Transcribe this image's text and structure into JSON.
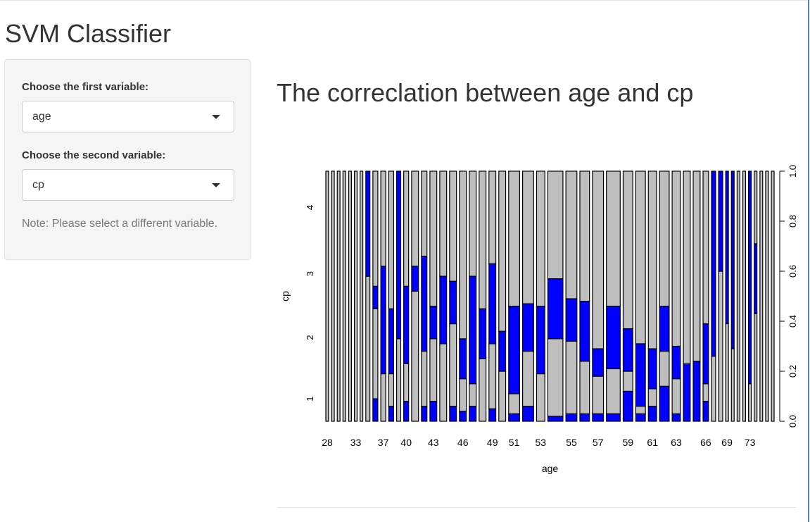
{
  "app": {
    "title": "SVM Classifier"
  },
  "sidebar": {
    "first_label": "Choose the first variable:",
    "first_value": "age",
    "second_label": "Choose the second variable:",
    "second_value": "cp",
    "note": "Note: Please select a different variable."
  },
  "main": {
    "plot_heading": "The correclation between age and cp"
  },
  "colors": {
    "cp0": "#bebebe",
    "cp1": "#0000ff",
    "outline": "#000000",
    "accent_border": "#4f87c4"
  },
  "chart_data": {
    "type": "spineplot",
    "xlabel": "age",
    "ylabel": "cp",
    "x_tick_labels": [
      "28",
      "33",
      "37",
      "40",
      "43",
      "46",
      "49",
      "51",
      "53",
      "55",
      "57",
      "59",
      "61",
      "63",
      "66",
      "69",
      "73"
    ],
    "y_left_tick_labels": [
      "1",
      "2",
      "3",
      "4"
    ],
    "y_right_tick_labels": [
      "0.0",
      "0.2",
      "0.4",
      "0.6",
      "0.8",
      "1.0"
    ],
    "ylim": [
      0,
      1
    ],
    "category_colors": [
      "#bebebe",
      "#0000ff"
    ],
    "bars": [
      {
        "age": "28",
        "w": 1,
        "b": []
      },
      {
        "age": "29",
        "w": 1,
        "b": []
      },
      {
        "age": "30",
        "w": 1,
        "b": []
      },
      {
        "age": "31",
        "w": 1,
        "b": []
      },
      {
        "age": "32",
        "w": 1,
        "b": []
      },
      {
        "age": "33",
        "w": 1,
        "b": []
      },
      {
        "age": "34",
        "w": 1,
        "b": []
      },
      {
        "age": "35",
        "w": 1.5,
        "b": [
          0.58
        ]
      },
      {
        "age": "36",
        "w": 1.8,
        "b": [
          0.0,
          0.09,
          0.45,
          0.54
        ]
      },
      {
        "age": "37",
        "w": 1.8,
        "b": [
          0.19,
          0.62
        ]
      },
      {
        "age": "38",
        "w": 1.8,
        "b": [
          0.0,
          0.06,
          0.19,
          0.45
        ]
      },
      {
        "age": "39",
        "w": 1.5,
        "b": [
          0.33
        ]
      },
      {
        "age": "40",
        "w": 1.8,
        "b": [
          0.0,
          0.08,
          0.23,
          0.54
        ]
      },
      {
        "age": "41",
        "w": 2.5,
        "b": [
          0.52,
          0.62
        ]
      },
      {
        "age": "42",
        "w": 2,
        "b": [
          0.0,
          0.06,
          0.28,
          0.66
        ]
      },
      {
        "age": "43",
        "w": 2.5,
        "b": [
          0.0,
          0.08,
          0.33,
          0.46
        ]
      },
      {
        "age": "44",
        "w": 2.5,
        "b": [
          0.31,
          0.58
        ]
      },
      {
        "age": "45",
        "w": 2.5,
        "b": [
          0.0,
          0.06,
          0.39,
          0.56
        ]
      },
      {
        "age": "46",
        "w": 2.5,
        "b": [
          0.0,
          0.04,
          0.17,
          0.33
        ]
      },
      {
        "age": "47",
        "w": 2.5,
        "b": [
          0.0,
          0.06,
          0.15,
          0.58
        ]
      },
      {
        "age": "48",
        "w": 2.5,
        "b": [
          0.25,
          0.45
        ]
      },
      {
        "age": "49",
        "w": 2.5,
        "b": [
          0.0,
          0.05,
          0.31,
          0.63
        ]
      },
      {
        "age": "50",
        "w": 2.5,
        "b": [
          0.2,
          0.36
        ]
      },
      {
        "age": "51",
        "w": 4,
        "b": [
          0.0,
          0.03,
          0.11,
          0.46
        ]
      },
      {
        "age": "52",
        "w": 4,
        "b": [
          0.0,
          0.06,
          0.28,
          0.47
        ]
      },
      {
        "age": "53",
        "w": 3,
        "b": [
          0.19,
          0.46
        ]
      },
      {
        "age": "54",
        "w": 5.5,
        "b": [
          0.0,
          0.02,
          0.33,
          0.57
        ]
      },
      {
        "age": "55",
        "w": 4,
        "b": [
          0.0,
          0.03,
          0.32,
          0.49
        ]
      },
      {
        "age": "56",
        "w": 3.5,
        "b": [
          0.0,
          0.03,
          0.24,
          0.48
        ]
      },
      {
        "age": "57",
        "w": 4,
        "b": [
          0.0,
          0.03,
          0.18,
          0.29
        ]
      },
      {
        "age": "58",
        "w": 5,
        "b": [
          0.0,
          0.03,
          0.21,
          0.46
        ]
      },
      {
        "age": "59",
        "w": 3.5,
        "b": [
          0.0,
          0.12,
          0.2,
          0.37
        ]
      },
      {
        "age": "60",
        "w": 3.5,
        "b": [
          0.0,
          0.03,
          0.06,
          0.31
        ]
      },
      {
        "age": "61",
        "w": 3,
        "b": [
          0.0,
          0.06,
          0.13,
          0.29
        ]
      },
      {
        "age": "62",
        "w": 3.5,
        "b": [
          0.0,
          0.14,
          0.28,
          0.46
        ]
      },
      {
        "age": "63",
        "w": 3,
        "b": [
          0.0,
          0.03,
          0.17,
          0.3
        ]
      },
      {
        "age": "64",
        "w": 2.5,
        "b": [
          0.0,
          0.23
        ]
      },
      {
        "age": "65",
        "w": 2.5,
        "b": [
          0.0,
          0.24
        ]
      },
      {
        "age": "66",
        "w": 2,
        "b": [
          0.0,
          0.08,
          0.15,
          0.39
        ]
      },
      {
        "age": "67",
        "w": 1.5,
        "b": [
          0.26
        ]
      },
      {
        "age": "68",
        "w": 1.5,
        "b": [
          0.6
        ]
      },
      {
        "age": "69",
        "w": 1,
        "b": [
          0.39
        ]
      },
      {
        "age": "70",
        "w": 1,
        "b": [
          0.29
        ]
      },
      {
        "age": "71",
        "w": 1,
        "b": []
      },
      {
        "age": "72",
        "w": 1,
        "b": []
      },
      {
        "age": "73",
        "w": 1,
        "b": [
          0.15
        ]
      },
      {
        "age": "74",
        "w": 1,
        "b": [
          0.43,
          0.71
        ]
      },
      {
        "age": "75",
        "w": 1,
        "b": []
      },
      {
        "age": "76",
        "w": 1,
        "b": []
      },
      {
        "age": "77",
        "w": 1,
        "b": []
      }
    ]
  }
}
